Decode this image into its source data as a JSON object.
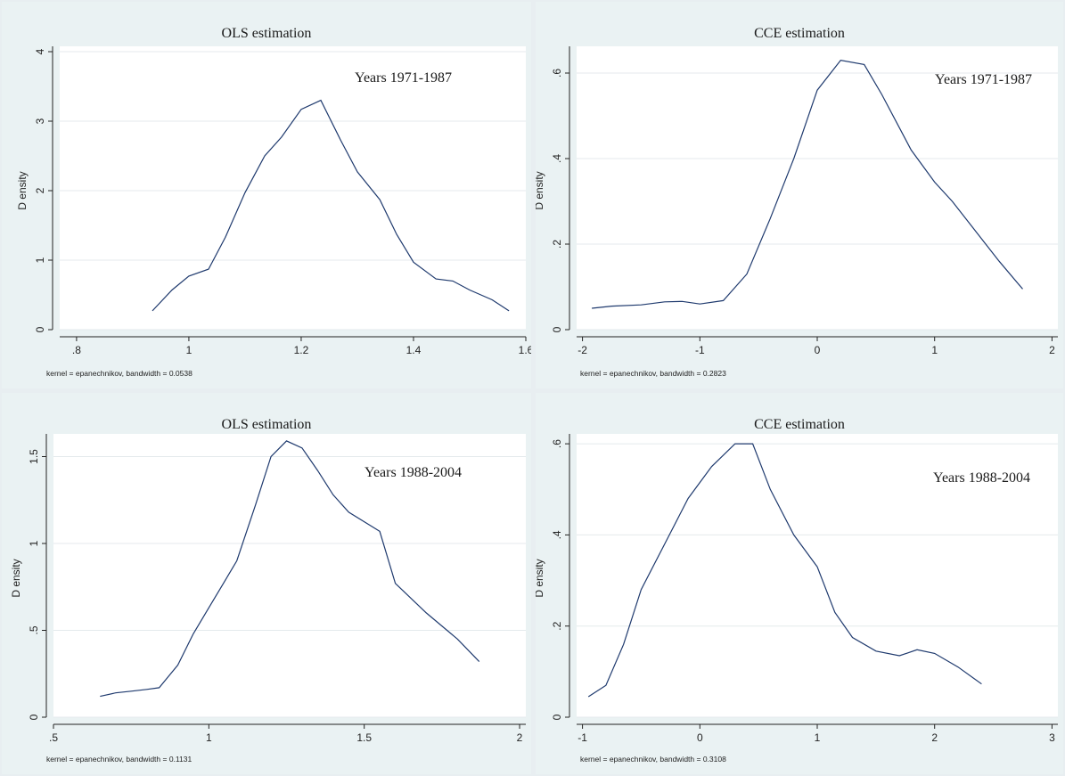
{
  "chart_data": [
    {
      "type": "line",
      "title": "OLS estimation",
      "annotation": "Years 1971-1987",
      "ylabel": "D ensity",
      "note": "kernel = epanechnikov, bandwidth = 0.0538",
      "xlim": [
        0.77,
        1.6
      ],
      "ylim": [
        0,
        4
      ],
      "xticks": [
        0.8,
        1,
        1.2,
        1.4,
        1.6
      ],
      "xtick_labels": [
        ".8",
        "1",
        "1.2",
        "1.4",
        "1.6"
      ],
      "yticks": [
        0,
        1,
        2,
        3,
        4
      ],
      "ytick_labels": [
        "0",
        "1",
        "2",
        "3",
        "4"
      ],
      "grid": true,
      "series": [
        {
          "x": [
            0.935,
            0.97,
            1.0,
            1.035,
            1.065,
            1.1,
            1.135,
            1.165,
            1.2,
            1.235,
            1.27,
            1.3,
            1.34,
            1.37,
            1.4,
            1.44,
            1.47,
            1.5,
            1.54,
            1.57
          ],
          "y": [
            0.27,
            0.57,
            0.77,
            0.87,
            1.33,
            1.97,
            2.5,
            2.77,
            3.17,
            3.3,
            2.73,
            2.27,
            1.87,
            1.37,
            0.97,
            0.73,
            0.7,
            0.57,
            0.43,
            0.27
          ]
        }
      ]
    },
    {
      "type": "line",
      "title": "CCE estimation",
      "annotation": "Years 1971-1987",
      "ylabel": "D ensity",
      "note": "kernel = epanechnikov, bandwidth = 0.2823",
      "xlim": [
        -2.05,
        2.05
      ],
      "ylim": [
        0,
        0.65
      ],
      "xticks": [
        -2,
        -1,
        0,
        1,
        2
      ],
      "xtick_labels": [
        "-2",
        "-1",
        "0",
        "1",
        "2"
      ],
      "yticks": [
        0,
        0.2,
        0.4,
        0.6
      ],
      "ytick_labels": [
        "0",
        ".2",
        ".4",
        ".6"
      ],
      "grid": true,
      "series": [
        {
          "x": [
            -1.92,
            -1.75,
            -1.5,
            -1.3,
            -1.15,
            -1.0,
            -0.8,
            -0.6,
            -0.4,
            -0.2,
            0.0,
            0.2,
            0.4,
            0.55,
            0.8,
            1.0,
            1.15,
            1.35,
            1.55,
            1.75
          ],
          "y": [
            0.05,
            0.055,
            0.058,
            0.065,
            0.066,
            0.06,
            0.068,
            0.13,
            0.26,
            0.4,
            0.56,
            0.63,
            0.62,
            0.55,
            0.42,
            0.345,
            0.3,
            0.23,
            0.16,
            0.095
          ]
        }
      ]
    },
    {
      "type": "line",
      "title": "OLS estimation",
      "annotation": "Years 1988-2004",
      "ylabel": "D ensity",
      "note": "kernel = epanechnikov, bandwidth = 0.1131",
      "xlim": [
        0.5,
        2.02
      ],
      "ylim": [
        0,
        1.6
      ],
      "xticks": [
        0.5,
        1,
        1.5,
        2
      ],
      "xtick_labels": [
        ".5",
        "1",
        "1.5",
        "2"
      ],
      "yticks": [
        0,
        0.5,
        1,
        1.5
      ],
      "ytick_labels": [
        "0",
        ".5",
        "1",
        "1.5"
      ],
      "grid": true,
      "series": [
        {
          "x": [
            0.65,
            0.7,
            0.75,
            0.8,
            0.84,
            0.9,
            0.95,
            1.0,
            1.05,
            1.09,
            1.15,
            1.2,
            1.25,
            1.3,
            1.35,
            1.4,
            1.45,
            1.55,
            1.6,
            1.7,
            1.8,
            1.87
          ],
          "y": [
            0.12,
            0.14,
            0.15,
            0.16,
            0.17,
            0.3,
            0.48,
            0.63,
            0.78,
            0.9,
            1.22,
            1.5,
            1.59,
            1.55,
            1.42,
            1.28,
            1.18,
            1.07,
            0.77,
            0.6,
            0.45,
            0.32
          ]
        }
      ]
    },
    {
      "type": "line",
      "title": "CCE estimation",
      "annotation": "Years 1988-2004",
      "ylabel": "D ensity",
      "note": "kernel = epanechnikov, bandwidth = 0.3108",
      "xlim": [
        -1.05,
        3.05
      ],
      "ylim": [
        0,
        0.61
      ],
      "xticks": [
        -1,
        0,
        1,
        2,
        3
      ],
      "xtick_labels": [
        "-1",
        "0",
        "1",
        "2",
        "3"
      ],
      "yticks": [
        0,
        0.2,
        0.4,
        0.6
      ],
      "ytick_labels": [
        "0",
        ".2",
        ".4",
        ".6"
      ],
      "grid": true,
      "series": [
        {
          "x": [
            -0.95,
            -0.8,
            -0.65,
            -0.5,
            -0.3,
            -0.1,
            0.1,
            0.3,
            0.45,
            0.6,
            0.8,
            1.0,
            1.15,
            1.3,
            1.5,
            1.7,
            1.85,
            2.0,
            2.2,
            2.4
          ],
          "y": [
            0.045,
            0.07,
            0.16,
            0.28,
            0.38,
            0.48,
            0.55,
            0.6,
            0.6,
            0.5,
            0.4,
            0.33,
            0.23,
            0.175,
            0.145,
            0.135,
            0.148,
            0.14,
            0.11,
            0.073
          ]
        }
      ]
    }
  ]
}
